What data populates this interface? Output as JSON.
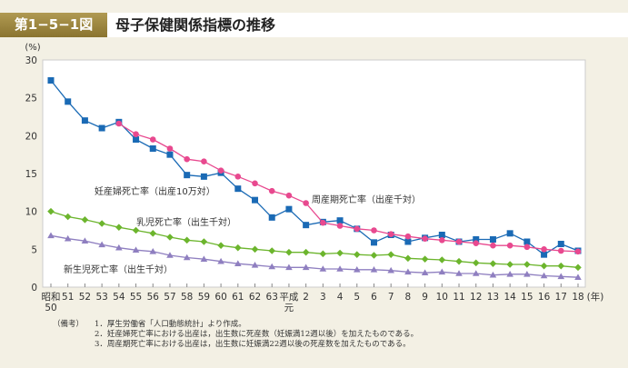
{
  "header": {
    "figure_number": "第1−5−1図",
    "title": "母子保健関係指標の推移"
  },
  "chart_data": {
    "type": "line",
    "title": "母子保健関係指標の推移",
    "ylabel": "(%)",
    "xlabel": "(年)",
    "ylim": [
      0,
      30
    ],
    "yticks": [
      "0",
      "5",
      "10",
      "15",
      "20",
      "25",
      "30"
    ],
    "categories": [
      "昭和50",
      "51",
      "52",
      "53",
      "54",
      "55",
      "56",
      "57",
      "58",
      "59",
      "60",
      "61",
      "62",
      "63",
      "平成元",
      "2",
      "3",
      "4",
      "5",
      "6",
      "7",
      "8",
      "9",
      "10",
      "11",
      "12",
      "13",
      "14",
      "15",
      "16",
      "17",
      "18"
    ],
    "tick_labels": [
      [
        "昭和",
        "50"
      ],
      [
        "51"
      ],
      [
        "52"
      ],
      [
        "53"
      ],
      [
        "54"
      ],
      [
        "55"
      ],
      [
        "56"
      ],
      [
        "57"
      ],
      [
        "58"
      ],
      [
        "59"
      ],
      [
        "60"
      ],
      [
        "61"
      ],
      [
        "62"
      ],
      [
        "63"
      ],
      [
        "平成",
        "元"
      ],
      [
        "2"
      ],
      [
        "3"
      ],
      [
        "4"
      ],
      [
        "5"
      ],
      [
        "6"
      ],
      [
        "7"
      ],
      [
        "8"
      ],
      [
        "9"
      ],
      [
        "10"
      ],
      [
        "11"
      ],
      [
        "12"
      ],
      [
        "13"
      ],
      [
        "14"
      ],
      [
        "15"
      ],
      [
        "16"
      ],
      [
        "17"
      ],
      [
        "18"
      ]
    ],
    "series": [
      {
        "name": "妊産婦死亡率（出産10万対）",
        "color": "#1a6ab5",
        "marker": "square",
        "values": [
          27.3,
          24.5,
          22.0,
          21.0,
          21.8,
          19.5,
          18.3,
          17.5,
          14.8,
          14.6,
          15.1,
          13.0,
          11.5,
          9.2,
          10.3,
          8.2,
          8.6,
          8.8,
          7.7,
          5.9,
          6.9,
          6.0,
          6.5,
          6.9,
          6.0,
          6.3,
          6.3,
          7.1,
          6.0,
          4.3,
          5.7,
          4.8
        ]
      },
      {
        "name": "周産期死亡率（出産千対）",
        "color": "#e8498f",
        "marker": "circle",
        "values": [
          null,
          null,
          null,
          null,
          21.6,
          20.2,
          19.5,
          18.3,
          16.9,
          16.6,
          15.4,
          14.6,
          13.7,
          12.7,
          12.1,
          11.1,
          8.5,
          8.1,
          7.7,
          7.5,
          7.0,
          6.7,
          6.4,
          6.2,
          6.0,
          5.8,
          5.5,
          5.5,
          5.3,
          5.0,
          4.8,
          4.7
        ]
      },
      {
        "name": "乳児死亡率（出生千対）",
        "color": "#6cb52d",
        "marker": "diamond",
        "values": [
          10.0,
          9.3,
          8.9,
          8.4,
          7.9,
          7.5,
          7.1,
          6.6,
          6.2,
          6.0,
          5.5,
          5.2,
          5.0,
          4.8,
          4.6,
          4.6,
          4.4,
          4.5,
          4.3,
          4.2,
          4.3,
          3.8,
          3.7,
          3.6,
          3.4,
          3.2,
          3.1,
          3.0,
          3.0,
          2.8,
          2.8,
          2.6
        ]
      },
      {
        "name": "新生児死亡率（出生千対）",
        "color": "#8f7fc0",
        "marker": "triangle",
        "values": [
          6.8,
          6.4,
          6.1,
          5.6,
          5.2,
          4.9,
          4.7,
          4.2,
          3.9,
          3.7,
          3.4,
          3.1,
          2.9,
          2.7,
          2.6,
          2.6,
          2.4,
          2.4,
          2.3,
          2.3,
          2.2,
          2.0,
          1.9,
          2.0,
          1.8,
          1.8,
          1.6,
          1.7,
          1.7,
          1.5,
          1.4,
          1.3
        ]
      }
    ]
  },
  "notes": {
    "label": "（備考）",
    "items": [
      "1．厚生労働省「人口動態統計」より作成。",
      "2．妊産婦死亡率における出産は，出生数に死産数（妊娠満12週以後）を加えたものである。",
      "3．周産期死亡率における出産は，出生数に妊娠満22週以後の死産数を加えたものである。"
    ]
  }
}
